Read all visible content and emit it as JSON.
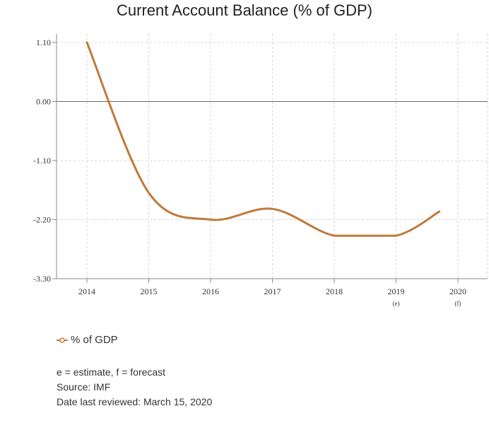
{
  "chart_data": {
    "type": "line",
    "title": "Current Account Balance (% of GDP)",
    "xlabel": "",
    "ylabel": "",
    "x_ticks": [
      {
        "label": "2014",
        "note": ""
      },
      {
        "label": "2015",
        "note": ""
      },
      {
        "label": "2016",
        "note": ""
      },
      {
        "label": "2017",
        "note": ""
      },
      {
        "label": "2018",
        "note": ""
      },
      {
        "label": "2019",
        "note": "(e)"
      },
      {
        "label": "2020",
        "note": "(f)"
      }
    ],
    "y_ticks": [
      "1.10",
      "0.00",
      "-1.10",
      "-2.20",
      "-3.30"
    ],
    "ylim": [
      -3.3,
      1.1
    ],
    "xlim": [
      2013.5,
      2020.5
    ],
    "grid": true,
    "legend_position": "bottom-left",
    "series": [
      {
        "name": "% of GDP",
        "color": "#c07a38",
        "x": [
          2014,
          2015,
          2016,
          2017,
          2018,
          2019,
          2019.7
        ],
        "y": [
          1.1,
          -1.7,
          -2.2,
          -2.0,
          -2.5,
          -2.5,
          -2.05
        ]
      }
    ]
  },
  "legend": {
    "label": "% of GDP"
  },
  "footnotes": [
    "e = estimate, f = forecast",
    "Source: IMF",
    "Date last reviewed: March 15, 2020"
  ]
}
